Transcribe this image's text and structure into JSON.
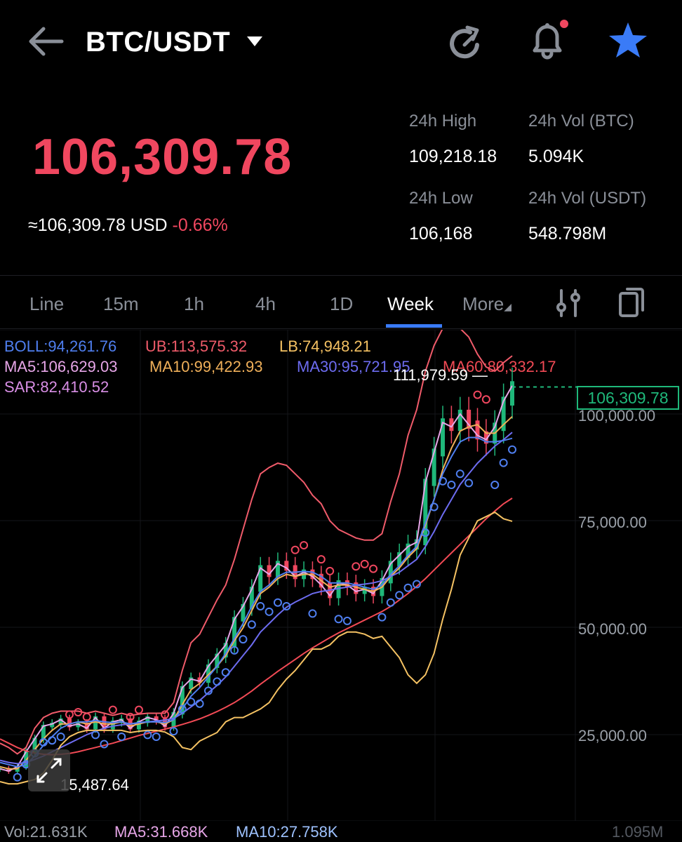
{
  "header": {
    "pair": "BTC/USDT"
  },
  "price": {
    "last": "106,309.78",
    "usd_prefix": "≈106,309.78 USD",
    "change": "-0.66%"
  },
  "stats": {
    "high_label": "24h High",
    "high_value": "109,218.18",
    "vol_btc_label": "24h Vol (BTC)",
    "vol_btc_value": "5.094K",
    "low_label": "24h Low",
    "low_value": "106,168",
    "vol_usdt_label": "24h Vol  (USDT)",
    "vol_usdt_value": "548.798M"
  },
  "tabs": [
    "Line",
    "15m",
    "1h",
    "4h",
    "1D",
    "Week",
    "More"
  ],
  "active_tab": "Week",
  "indicators": {
    "boll": "BOLL:94,261.76",
    "ub": "UB:113,575.32",
    "lb": "LB:74,948.21",
    "ma5": "MA5:106,629.03",
    "ma10": "MA10:99,422.93",
    "ma30": "MA30:95,721.95",
    "ma60": "MA60:80,332.17",
    "sar": "SAR:82,410.52"
  },
  "chart_labels": {
    "high_marker": "111,979.59",
    "low_marker": "15,487.64",
    "current_tag": "106,309.78",
    "axis": [
      "100,000.00",
      "75,000.00",
      "50,000.00",
      "25,000.00"
    ],
    "vol_axis": "1.095M"
  },
  "volume": {
    "vol": "Vol:21.631K",
    "ma5": "MA5:31.668K",
    "ma10": "MA10:27.758K"
  },
  "colors": {
    "down": "#f0475f",
    "up": "#1fb87a",
    "accent": "#3a7bf7",
    "boll": "#4f7ff0",
    "ub": "#f05b6a",
    "lb": "#f5c263",
    "ma5": "#e7a6e8",
    "ma10": "#f0b05a",
    "ma30": "#6d6cf0",
    "ma60": "#f24a55",
    "sar": "#d98fe6"
  },
  "chart_data": {
    "type": "line",
    "title": "",
    "ylim": [
      0,
      125000
    ],
    "y_ticks": [
      25000,
      50000,
      75000,
      100000
    ],
    "grid": true,
    "last_price": 106309.78,
    "high": 111979.59,
    "low": 15487.64,
    "series": [
      {
        "name": "MA5",
        "values": [
          17000,
          16500,
          17500,
          21000,
          24000,
          27000,
          27500,
          28500,
          27000,
          27500,
          26500,
          29000,
          26500,
          28000,
          28500,
          26500,
          28000,
          29000,
          28500,
          27000,
          30000,
          36000,
          38000,
          37500,
          41000,
          43500,
          46000,
          52000,
          55000,
          59000,
          64000,
          62500,
          65000,
          64000,
          62000,
          63000,
          62000,
          60000,
          57500,
          60500,
          60000,
          58500,
          59000,
          58000,
          61000,
          65000,
          67000,
          69000,
          70000,
          84000,
          91000,
          98000,
          97000,
          100000,
          97500,
          95000,
          94000,
          97000,
          103000,
          106600
        ]
      },
      {
        "name": "MA10",
        "values": [
          17500,
          17000,
          17000,
          19000,
          21500,
          24000,
          26000,
          27500,
          27500,
          28000,
          27500,
          28000,
          27500,
          27500,
          28000,
          27000,
          27500,
          28000,
          28000,
          27500,
          28500,
          32000,
          35500,
          37000,
          39000,
          41000,
          43500,
          47000,
          50000,
          54000,
          58000,
          59500,
          61500,
          62500,
          62000,
          62500,
          62500,
          61000,
          59500,
          60000,
          60000,
          59500,
          59000,
          58500,
          59500,
          62000,
          64000,
          66500,
          68500,
          74000,
          80000,
          87000,
          92000,
          96000,
          97000,
          97500,
          95500,
          95500,
          97500,
          99400
        ]
      },
      {
        "name": "MA30",
        "values": [
          19000,
          18500,
          18200,
          18500,
          19200,
          20000,
          21000,
          22000,
          23000,
          24000,
          25000,
          25800,
          26500,
          27000,
          27300,
          27500,
          27800,
          28000,
          28200,
          28400,
          28800,
          30000,
          31500,
          33000,
          34800,
          36500,
          38500,
          41000,
          43500,
          46000,
          49000,
          51000,
          53000,
          54800,
          56000,
          57000,
          58000,
          58500,
          58800,
          59200,
          59500,
          60000,
          60200,
          60500,
          61000,
          62000,
          63000,
          64500,
          66000,
          69000,
          72500,
          76500,
          80000,
          83500,
          86000,
          88500,
          90500,
          92500,
          94000,
          95700
        ]
      },
      {
        "name": "MA60",
        "values": [
          24000,
          23000,
          22000,
          21200,
          20700,
          20400,
          20300,
          20400,
          20600,
          21000,
          21500,
          22000,
          22500,
          23000,
          23600,
          24200,
          24800,
          25300,
          25800,
          26300,
          26800,
          27400,
          28000,
          28700,
          29500,
          30400,
          31400,
          32500,
          33800,
          35200,
          36800,
          38300,
          39800,
          41200,
          42600,
          44000,
          45300,
          46500,
          47700,
          48800,
          49800,
          50800,
          51800,
          52800,
          53800,
          55000,
          56500,
          58000,
          59700,
          61500,
          63500,
          65500,
          67500,
          69500,
          71500,
          73500,
          75500,
          77300,
          79000,
          80300
        ]
      },
      {
        "name": "BOLL",
        "values": [
          18500,
          18000,
          17500,
          18000,
          20000,
          22500,
          24500,
          26500,
          27500,
          28000,
          28000,
          28300,
          28000,
          27800,
          28000,
          27500,
          27800,
          28000,
          28000,
          27800,
          28500,
          31000,
          34000,
          36000,
          38500,
          41000,
          44000,
          47500,
          51000,
          55000,
          58500,
          60000,
          62000,
          63000,
          63000,
          63200,
          63000,
          62000,
          60500,
          60500,
          60500,
          60000,
          59500,
          59000,
          60000,
          62500,
          64500,
          67000,
          69000,
          74500,
          80000,
          86000,
          90000,
          93500,
          94500,
          94500,
          93500,
          93500,
          93800,
          94300
        ]
      },
      {
        "name": "UB",
        "values": [
          23000,
          22000,
          20500,
          22000,
          26500,
          29000,
          30000,
          30500,
          30500,
          30500,
          30000,
          30500,
          30000,
          29500,
          30000,
          29500,
          29800,
          30000,
          30000,
          30000,
          32500,
          40000,
          46500,
          48500,
          52500,
          56500,
          60000,
          66000,
          73000,
          80000,
          86000,
          87500,
          88500,
          88000,
          86000,
          84000,
          81000,
          79000,
          75000,
          73000,
          72000,
          71000,
          70500,
          70500,
          72000,
          79500,
          86000,
          95000,
          101000,
          110000,
          116000,
          120000,
          121000,
          120000,
          118000,
          114000,
          111000,
          110000,
          112000,
          113600
        ]
      },
      {
        "name": "LB",
        "values": [
          14000,
          13500,
          13500,
          14000,
          14500,
          16000,
          19000,
          22500,
          24500,
          25500,
          26000,
          26000,
          26000,
          26000,
          26000,
          25500,
          25800,
          26000,
          26000,
          25600,
          24500,
          22000,
          21500,
          23500,
          24500,
          25500,
          28000,
          29000,
          29000,
          30000,
          31000,
          32500,
          35500,
          38000,
          40000,
          42500,
          45000,
          45000,
          46000,
          48000,
          49000,
          49000,
          48500,
          47500,
          48000,
          45500,
          43000,
          39000,
          37000,
          39000,
          44000,
          52000,
          59000,
          67000,
          71000,
          75000,
          76000,
          77000,
          75500,
          74900
        ]
      }
    ],
    "volume": {
      "last": 21631,
      "ma5": 31668,
      "ma10": 27758,
      "max": 1095000
    }
  }
}
